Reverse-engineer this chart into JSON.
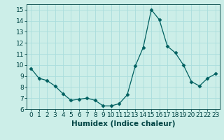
{
  "x": [
    0,
    1,
    2,
    3,
    4,
    5,
    6,
    7,
    8,
    9,
    10,
    11,
    12,
    13,
    14,
    15,
    16,
    17,
    18,
    19,
    20,
    21,
    22,
    23
  ],
  "y": [
    9.7,
    8.8,
    8.6,
    8.1,
    7.4,
    6.8,
    6.9,
    7.0,
    6.8,
    6.3,
    6.3,
    6.5,
    7.3,
    9.9,
    11.6,
    15.0,
    14.1,
    11.7,
    11.1,
    10.0,
    8.5,
    8.1,
    8.8,
    9.2
  ],
  "line_color": "#006060",
  "marker": "D",
  "marker_size": 2.5,
  "bg_color": "#cceee8",
  "grid_color": "#aadddd",
  "xlabel": "Humidex (Indice chaleur)",
  "xlim": [
    -0.5,
    23.5
  ],
  "ylim": [
    6,
    15.5
  ],
  "xticks": [
    0,
    1,
    2,
    3,
    4,
    5,
    6,
    7,
    8,
    9,
    10,
    11,
    12,
    13,
    14,
    15,
    16,
    17,
    18,
    19,
    20,
    21,
    22,
    23
  ],
  "yticks": [
    6,
    7,
    8,
    9,
    10,
    11,
    12,
    13,
    14,
    15
  ],
  "tick_labelsize": 6.5,
  "xlabel_fontsize": 7.5,
  "font_color": "#004444"
}
